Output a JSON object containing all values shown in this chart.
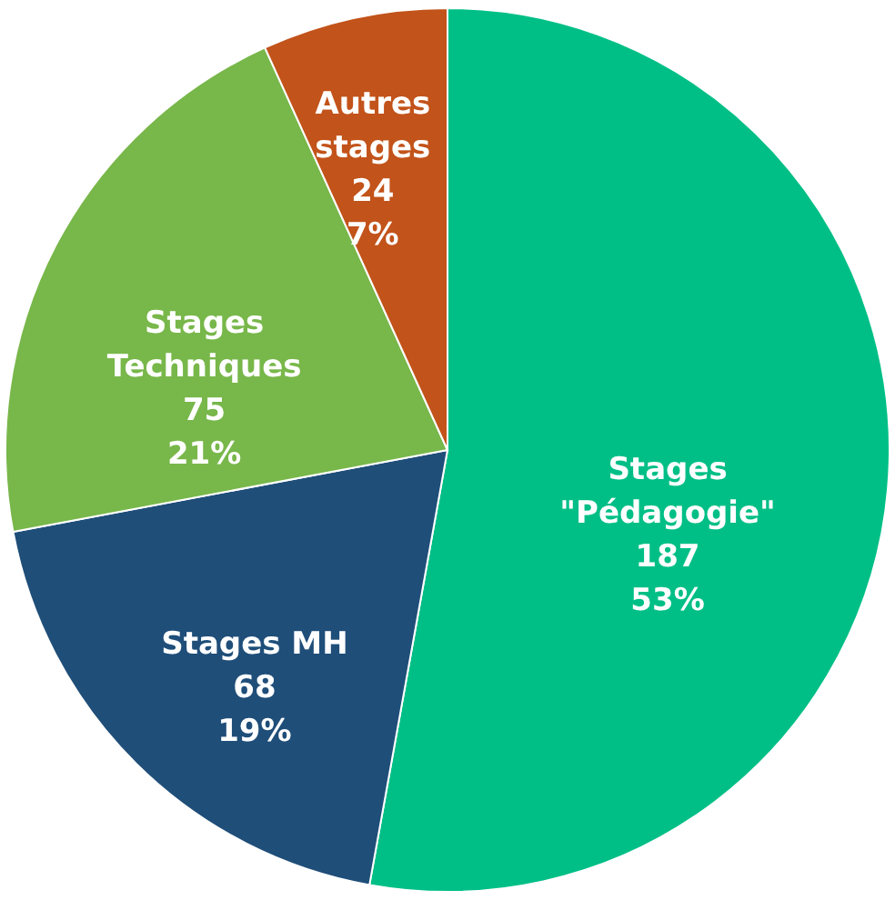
{
  "chart_data": {
    "type": "pie",
    "categories": [
      "Stages \"Pédagogie\"",
      "Stages MH",
      "Stages Techniques",
      "Autres stages"
    ],
    "values": [
      187,
      68,
      75,
      24
    ],
    "value_labels": [
      "187\n53%",
      "68\n19%",
      "75\n21%",
      "24\n7%"
    ],
    "colors": [
      "#00bf86",
      "#1f4e79",
      "#78b74a",
      "#c2531a"
    ],
    "legend": false
  }
}
